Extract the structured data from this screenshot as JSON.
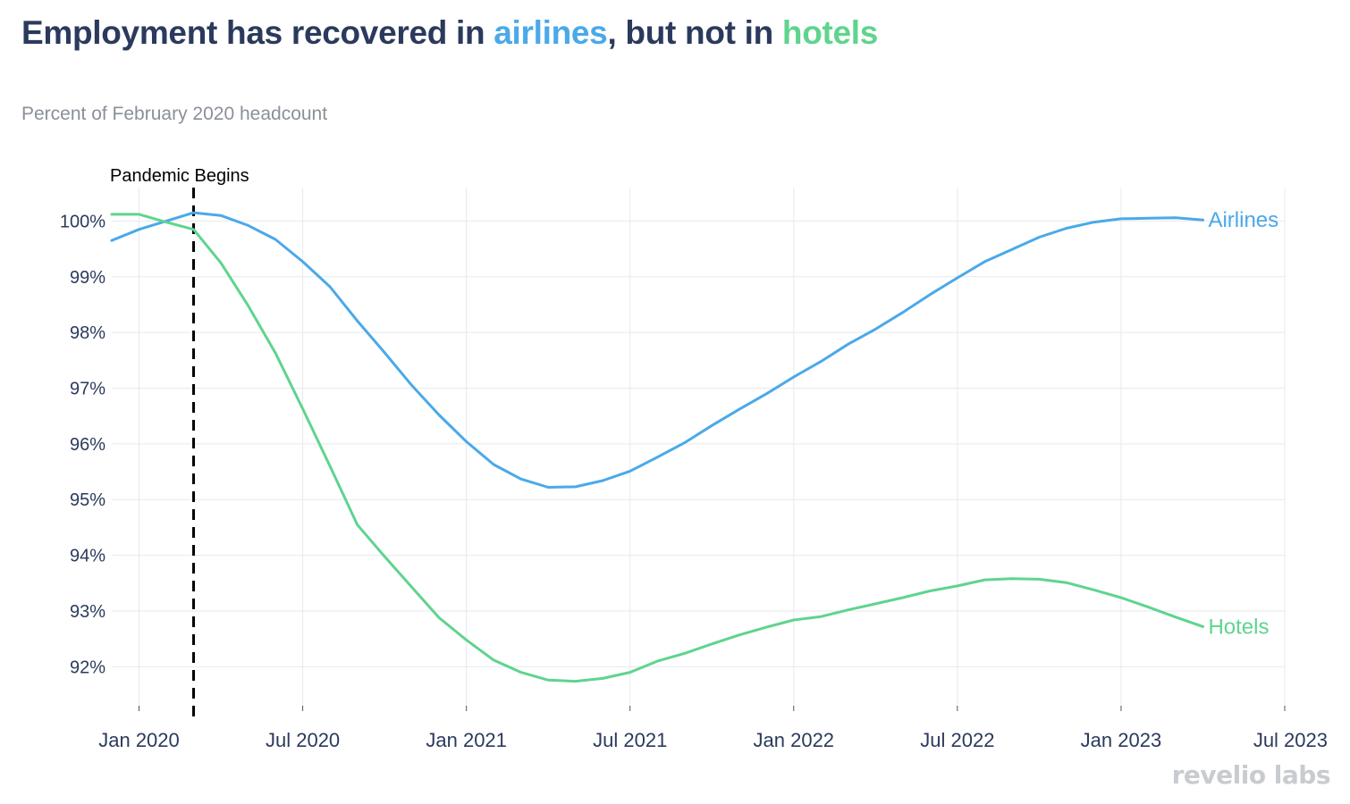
{
  "title": {
    "prefix": "Employment has recovered in ",
    "airlines_word": "airlines",
    "middle": ", but not in ",
    "hotels_word": "hotels"
  },
  "subtitle": "Percent of February 2020 headcount",
  "brand": "revelio labs",
  "colors": {
    "airlines": "#4aa9e9",
    "hotels": "#5fd48e",
    "title": "#2b3a5c",
    "axis_text": "#2b3a5c",
    "grid": "#e8e9eb",
    "subtitle": "#8a9099",
    "marker": "#000000"
  },
  "chart_data": {
    "type": "line",
    "xlabel": "",
    "ylabel": "",
    "x_ticks": [
      "Jan 2020",
      "Jul 2020",
      "Jan 2021",
      "Jul 2021",
      "Jan 2022",
      "Jul 2022",
      "Jan 2023",
      "Jul 2023"
    ],
    "y_ticks": [
      "92%",
      "93%",
      "94%",
      "95%",
      "96%",
      "97%",
      "98%",
      "99%",
      "100%"
    ],
    "xlim": [
      "2019-12",
      "2023-07"
    ],
    "ylim": [
      91.3,
      100.6
    ],
    "grid": true,
    "legend": "direct labels at line ends",
    "annotation": {
      "label": "Pandemic Begins",
      "x": "2020-03"
    },
    "x": [
      "2019-12",
      "2020-01",
      "2020-02",
      "2020-03",
      "2020-04",
      "2020-05",
      "2020-06",
      "2020-07",
      "2020-08",
      "2020-09",
      "2020-10",
      "2020-11",
      "2020-12",
      "2021-01",
      "2021-02",
      "2021-03",
      "2021-04",
      "2021-05",
      "2021-06",
      "2021-07",
      "2021-08",
      "2021-09",
      "2021-10",
      "2021-11",
      "2021-12",
      "2022-01",
      "2022-02",
      "2022-03",
      "2022-04",
      "2022-05",
      "2022-06",
      "2022-07",
      "2022-08",
      "2022-09",
      "2022-10",
      "2022-11",
      "2022-12",
      "2023-01",
      "2023-02",
      "2023-03",
      "2023-04"
    ],
    "series": [
      {
        "name": "Airlines",
        "key": "airlines",
        "values": [
          99.65,
          99.85,
          100.0,
          100.15,
          100.1,
          99.92,
          99.67,
          99.27,
          98.82,
          98.21,
          97.64,
          97.05,
          96.52,
          96.04,
          95.63,
          95.37,
          95.22,
          95.23,
          95.34,
          95.51,
          95.76,
          96.02,
          96.33,
          96.62,
          96.9,
          97.2,
          97.48,
          97.79,
          98.06,
          98.36,
          98.68,
          98.98,
          99.27,
          99.49,
          99.71,
          99.87,
          99.98,
          100.04,
          100.05,
          100.06,
          100.02
        ]
      },
      {
        "name": "Hotels",
        "key": "hotels",
        "values": [
          100.12,
          100.12,
          99.98,
          99.85,
          99.25,
          98.48,
          97.63,
          96.63,
          95.6,
          94.55,
          93.98,
          93.43,
          92.88,
          92.48,
          92.12,
          91.9,
          91.76,
          91.74,
          91.79,
          91.9,
          92.1,
          92.24,
          92.41,
          92.57,
          92.71,
          92.84,
          92.9,
          93.02,
          93.13,
          93.24,
          93.36,
          93.45,
          93.56,
          93.58,
          93.57,
          93.51,
          93.38,
          93.24,
          93.07,
          92.89,
          92.72
        ]
      }
    ]
  }
}
